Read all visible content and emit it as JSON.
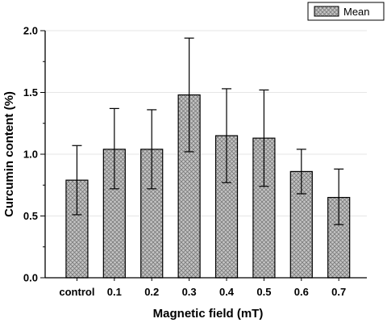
{
  "chart_data": {
    "type": "bar",
    "categories": [
      "control",
      "0.1",
      "0.2",
      "0.3",
      "0.4",
      "0.5",
      "0.6",
      "0.7"
    ],
    "series": [
      {
        "name": "Mean",
        "values": [
          0.79,
          1.04,
          1.04,
          1.48,
          1.15,
          1.13,
          0.86,
          0.65
        ],
        "error_low": [
          0.51,
          0.72,
          0.72,
          1.02,
          0.77,
          0.74,
          0.68,
          0.43
        ],
        "error_high": [
          1.07,
          1.37,
          1.36,
          1.94,
          1.53,
          1.52,
          1.04,
          0.88
        ]
      }
    ],
    "title": "",
    "xlabel": "Magnetic field (mT)",
    "ylabel": "Curcumin content (%)",
    "ylim": [
      0,
      2.0
    ],
    "yticks": [
      "0.0",
      "0.5",
      "1.0",
      "1.5",
      "2.0"
    ],
    "grid": true,
    "legend": "top-right",
    "colors": {
      "bar_fill": "#c0c0c0",
      "bar_hatch": "#808080",
      "stroke": "#000000",
      "grid": "#e6e6e6"
    }
  }
}
